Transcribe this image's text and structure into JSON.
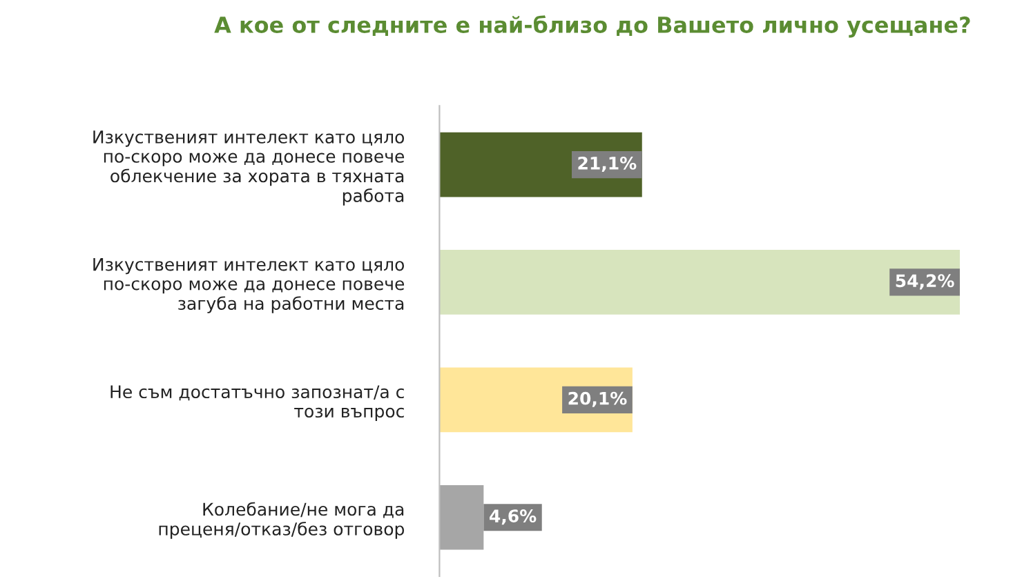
{
  "chart_data": {
    "type": "bar",
    "orientation": "horizontal",
    "title": "А кое от следните е най-близо до Вашето лично усещане?",
    "categories": [
      "Изкуственият интелект като цяло\nпо-скоро може да донесе повече\nоблекчение за хората в тяхната\nработа",
      "Изкуственият интелект като цяло\nпо-скоро може да донесе повече\nзагуба на работни места",
      "Не съм достатъчно запознат/а с\nтози въпрос",
      "Колебание/не мога да\nпреценя/отказ/без отговор"
    ],
    "values": [
      21.1,
      54.2,
      20.1,
      4.6
    ],
    "colors": [
      "#4f6228",
      "#d7e4bd",
      "#ffe699",
      "#a6a6a6"
    ],
    "value_labels": [
      "21,1%",
      "54,2%",
      "20,1%",
      "4,6%"
    ],
    "grid": false,
    "legend": false
  }
}
